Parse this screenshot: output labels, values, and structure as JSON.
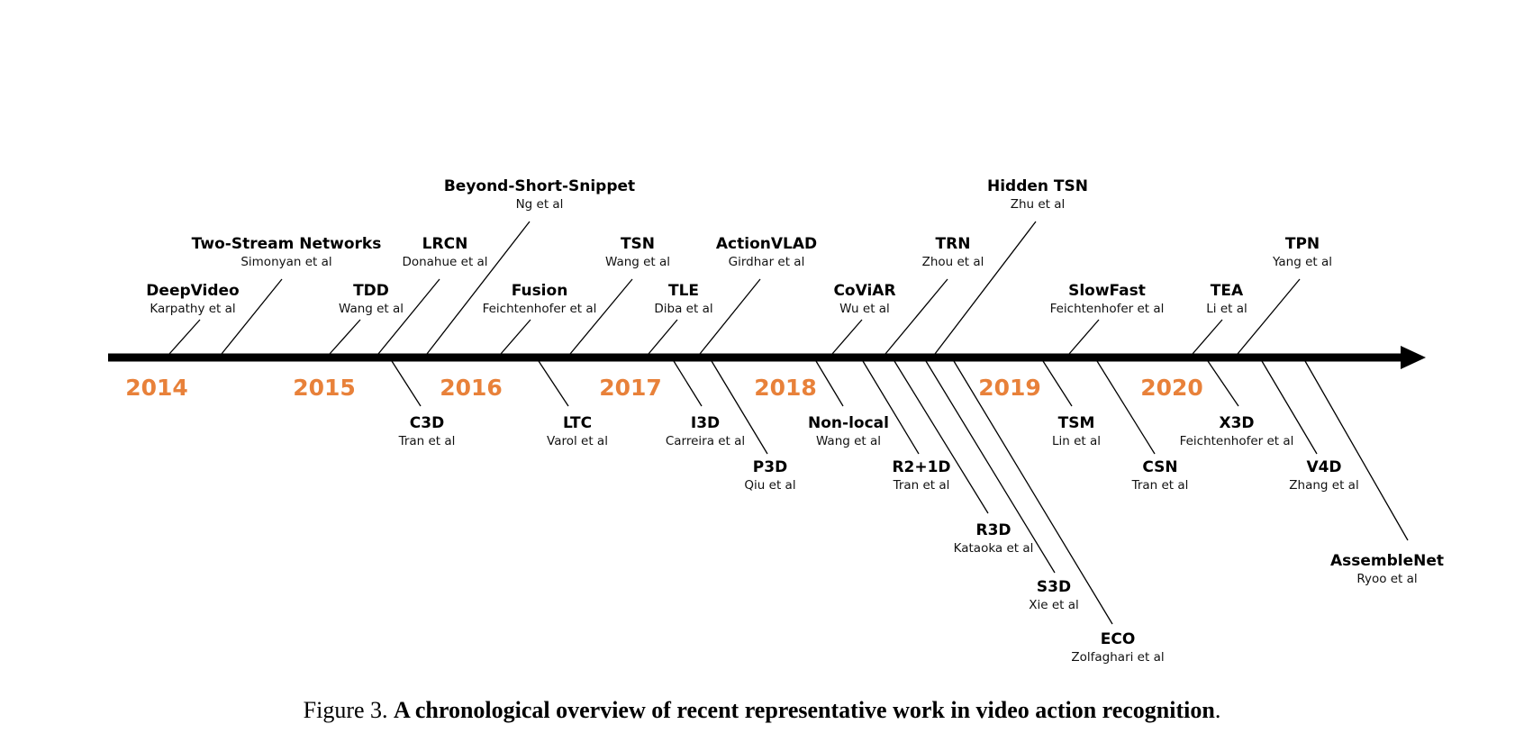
{
  "colors": {
    "axis": "#000000",
    "year": "#E8813A",
    "leader": "#000000"
  },
  "years": [
    "2014",
    "2015",
    "2016",
    "2017",
    "2018",
    "2019",
    "2020"
  ],
  "works": [
    {
      "name": "DeepVideo",
      "authors": "Karpathy et al"
    },
    {
      "name": "Two-Stream Networks",
      "authors": "Simonyan et al"
    },
    {
      "name": "TDD",
      "authors": "Wang et al"
    },
    {
      "name": "LRCN",
      "authors": "Donahue et al"
    },
    {
      "name": "Beyond-Short-Snippet",
      "authors": "Ng et al"
    },
    {
      "name": "Fusion",
      "authors": "Feichtenhofer et al"
    },
    {
      "name": "TSN",
      "authors": "Wang et al"
    },
    {
      "name": "TLE",
      "authors": "Diba et al"
    },
    {
      "name": "ActionVLAD",
      "authors": "Girdhar et al"
    },
    {
      "name": "CoViAR",
      "authors": "Wu et al"
    },
    {
      "name": "TRN",
      "authors": "Zhou et al"
    },
    {
      "name": "Hidden TSN",
      "authors": "Zhu et al"
    },
    {
      "name": "SlowFast",
      "authors": "Feichtenhofer et al"
    },
    {
      "name": "TEA",
      "authors": "Li et al"
    },
    {
      "name": "TPN",
      "authors": "Yang et al"
    },
    {
      "name": "C3D",
      "authors": "Tran et al"
    },
    {
      "name": "LTC",
      "authors": "Varol et al"
    },
    {
      "name": "I3D",
      "authors": "Carreira et al"
    },
    {
      "name": "P3D",
      "authors": "Qiu et al"
    },
    {
      "name": "Non-local",
      "authors": "Wang et al"
    },
    {
      "name": "R2+1D",
      "authors": "Tran et al"
    },
    {
      "name": "R3D",
      "authors": "Kataoka et al"
    },
    {
      "name": "S3D",
      "authors": "Xie et al"
    },
    {
      "name": "ECO",
      "authors": "Zolfaghari et al"
    },
    {
      "name": "TSM",
      "authors": "Lin et al"
    },
    {
      "name": "CSN",
      "authors": "Tran et al"
    },
    {
      "name": "X3D",
      "authors": "Feichtenhofer et al"
    },
    {
      "name": "V4D",
      "authors": "Zhang et al"
    },
    {
      "name": "AssembleNet",
      "authors": "Ryoo et al"
    }
  ],
  "caption": {
    "prefix": "Figure 3. ",
    "title": "A chronological overview of recent representative work in video action recognition",
    "suffix": "."
  }
}
